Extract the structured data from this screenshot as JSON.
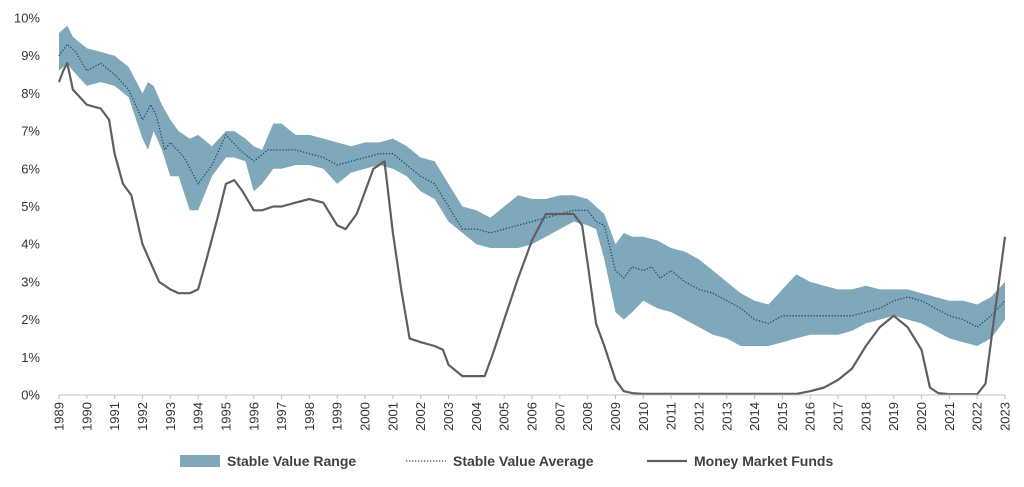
{
  "chart_data": {
    "type": "area",
    "title": "",
    "xlabel": "",
    "ylabel": "",
    "xlim": [
      1989,
      2023
    ],
    "ylim": [
      0,
      10
    ],
    "y_unit": "%",
    "grid": false,
    "legend_position": "bottom",
    "x_ticks": [
      "1989",
      "1990",
      "1991",
      "1992",
      "1993",
      "1994",
      "1995",
      "1996",
      "1997",
      "1998",
      "1999",
      "2000",
      "2001",
      "2002",
      "2003",
      "2004",
      "2005",
      "2006",
      "2007",
      "2008",
      "2009",
      "2010",
      "2011",
      "2012",
      "2013",
      "2014",
      "2015",
      "2016",
      "2017",
      "2018",
      "2019",
      "2020",
      "2021",
      "2022",
      "2023"
    ],
    "y_ticks": [
      "0%",
      "1%",
      "2%",
      "3%",
      "4%",
      "5%",
      "6%",
      "7%",
      "8%",
      "9%",
      "10%"
    ],
    "series": [
      {
        "name": "Stable Value Range",
        "kind": "band",
        "color": "#7fa8bb",
        "x": [
          1989,
          1989.3,
          1989.5,
          1990,
          1990.5,
          1991,
          1991.5,
          1992,
          1992.2,
          1992.4,
          1992.7,
          1993,
          1993.3,
          1993.7,
          1994,
          1994.5,
          1995,
          1995.3,
          1995.7,
          1996,
          1996.3,
          1996.7,
          1997,
          1997.5,
          1998,
          1998.5,
          1999,
          1999.5,
          2000,
          2000.5,
          2001,
          2001.5,
          2002,
          2002.5,
          2003,
          2003.5,
          2004,
          2004.5,
          2005,
          2005.5,
          2006,
          2006.5,
          2007,
          2007.5,
          2008,
          2008.3,
          2008.6,
          2009,
          2009.3,
          2009.6,
          2010,
          2010.5,
          2011,
          2011.5,
          2012,
          2012.5,
          2013,
          2013.5,
          2014,
          2014.5,
          2015,
          2015.5,
          2016,
          2016.5,
          2017,
          2017.5,
          2018,
          2018.5,
          2019,
          2019.5,
          2020,
          2020.5,
          2021,
          2021.5,
          2022,
          2022.5,
          2023
        ],
        "upper": [
          9.6,
          9.8,
          9.5,
          9.2,
          9.1,
          9.0,
          8.7,
          8.0,
          8.3,
          8.2,
          7.7,
          7.3,
          7.0,
          6.8,
          6.9,
          6.6,
          7.0,
          7.0,
          6.8,
          6.6,
          6.5,
          7.2,
          7.2,
          6.9,
          6.9,
          6.8,
          6.7,
          6.6,
          6.7,
          6.7,
          6.8,
          6.6,
          6.3,
          6.2,
          5.6,
          5.0,
          4.9,
          4.7,
          5.0,
          5.3,
          5.2,
          5.2,
          5.3,
          5.3,
          5.2,
          5.0,
          4.8,
          4.0,
          4.3,
          4.2,
          4.2,
          4.1,
          3.9,
          3.8,
          3.6,
          3.3,
          3.0,
          2.7,
          2.5,
          2.4,
          2.8,
          3.2,
          3.0,
          2.9,
          2.8,
          2.8,
          2.9,
          2.8,
          2.8,
          2.8,
          2.7,
          2.6,
          2.5,
          2.5,
          2.4,
          2.6,
          3.0
        ],
        "lower": [
          8.6,
          8.8,
          8.6,
          8.2,
          8.3,
          8.2,
          7.9,
          6.8,
          6.5,
          7.0,
          6.5,
          5.8,
          5.8,
          4.9,
          4.9,
          5.8,
          6.3,
          6.3,
          6.2,
          5.4,
          5.6,
          6.0,
          6.0,
          6.1,
          6.1,
          6.0,
          5.6,
          5.9,
          6.0,
          6.1,
          6.0,
          5.8,
          5.4,
          5.2,
          4.6,
          4.3,
          4.0,
          3.9,
          3.9,
          3.9,
          4.0,
          4.2,
          4.4,
          4.6,
          4.5,
          4.4,
          3.6,
          2.2,
          2.0,
          2.2,
          2.5,
          2.3,
          2.2,
          2.0,
          1.8,
          1.6,
          1.5,
          1.3,
          1.3,
          1.3,
          1.4,
          1.5,
          1.6,
          1.6,
          1.6,
          1.7,
          1.9,
          2.0,
          2.1,
          2.0,
          1.9,
          1.7,
          1.5,
          1.4,
          1.3,
          1.5,
          2.0
        ]
      },
      {
        "name": "Stable Value Average",
        "kind": "dotted-line",
        "color": "#1f4e79",
        "x": [
          1989,
          1989.3,
          1989.6,
          1990,
          1990.5,
          1991,
          1991.5,
          1992,
          1992.3,
          1992.5,
          1992.8,
          1993,
          1993.5,
          1994,
          1994.5,
          1995,
          1995.5,
          1996,
          1996.5,
          1997,
          1997.5,
          1998,
          1998.5,
          1999,
          1999.5,
          2000,
          2000.5,
          2001,
          2001.5,
          2002,
          2002.5,
          2003,
          2003.5,
          2004,
          2004.5,
          2005,
          2005.5,
          2006,
          2006.5,
          2007,
          2007.5,
          2008,
          2008.3,
          2008.6,
          2009,
          2009.3,
          2009.6,
          2010,
          2010.3,
          2010.6,
          2011,
          2011.5,
          2012,
          2012.5,
          2013,
          2013.5,
          2014,
          2014.5,
          2015,
          2015.5,
          2016,
          2016.5,
          2017,
          2017.5,
          2018,
          2018.5,
          2019,
          2019.5,
          2020,
          2020.5,
          2021,
          2021.5,
          2022,
          2022.5,
          2023
        ],
        "y": [
          9.0,
          9.3,
          9.1,
          8.6,
          8.8,
          8.5,
          8.1,
          7.3,
          7.7,
          7.4,
          6.5,
          6.7,
          6.3,
          5.6,
          6.1,
          6.9,
          6.5,
          6.2,
          6.5,
          6.5,
          6.5,
          6.4,
          6.3,
          6.1,
          6.2,
          6.3,
          6.4,
          6.4,
          6.1,
          5.8,
          5.6,
          5.0,
          4.4,
          4.4,
          4.3,
          4.4,
          4.5,
          4.6,
          4.7,
          4.8,
          4.9,
          4.9,
          4.6,
          4.5,
          3.3,
          3.1,
          3.4,
          3.3,
          3.4,
          3.1,
          3.3,
          3.0,
          2.8,
          2.7,
          2.5,
          2.3,
          2.0,
          1.9,
          2.1,
          2.1,
          2.1,
          2.1,
          2.1,
          2.1,
          2.2,
          2.3,
          2.5,
          2.6,
          2.5,
          2.3,
          2.1,
          2.0,
          1.8,
          2.1,
          2.5
        ]
      },
      {
        "name": "Money Market Funds",
        "kind": "line",
        "color": "#5f5f5f",
        "x": [
          1989,
          1989.15,
          1989.3,
          1989.5,
          1990,
          1990.5,
          1990.8,
          1991,
          1991.3,
          1991.6,
          1992,
          1992.3,
          1992.6,
          1993,
          1993.3,
          1993.7,
          1994,
          1994.3,
          1994.7,
          1995,
          1995.3,
          1995.6,
          1996,
          1996.3,
          1996.7,
          1997,
          1997.5,
          1998,
          1998.5,
          1999,
          1999.3,
          1999.7,
          2000,
          2000.3,
          2000.7,
          2001,
          2001.3,
          2001.6,
          2002,
          2002.5,
          2002.8,
          2003,
          2003.5,
          2004,
          2004.3,
          2004.6,
          2005,
          2005.5,
          2006,
          2006.5,
          2007,
          2007.5,
          2007.8,
          2008,
          2008.3,
          2008.6,
          2009,
          2009.3,
          2009.6,
          2010,
          2010.5,
          2011,
          2012,
          2013,
          2014,
          2015,
          2015.5,
          2016,
          2016.5,
          2017,
          2017.5,
          2018,
          2018.5,
          2019,
          2019.5,
          2020,
          2020.3,
          2020.6,
          2021,
          2021.5,
          2021.8,
          2022,
          2022.3,
          2022.6,
          2023
        ],
        "y": [
          8.3,
          8.6,
          8.8,
          8.1,
          7.7,
          7.6,
          7.3,
          6.4,
          5.6,
          5.3,
          4.0,
          3.5,
          3.0,
          2.8,
          2.7,
          2.7,
          2.8,
          3.6,
          4.7,
          5.6,
          5.7,
          5.4,
          4.9,
          4.9,
          5.0,
          5.0,
          5.1,
          5.2,
          5.1,
          4.5,
          4.4,
          4.8,
          5.4,
          6.0,
          6.2,
          4.3,
          2.8,
          1.5,
          1.4,
          1.3,
          1.2,
          0.8,
          0.5,
          0.5,
          0.5,
          1.1,
          2.0,
          3.1,
          4.1,
          4.8,
          4.8,
          4.8,
          4.5,
          3.5,
          1.9,
          1.3,
          0.4,
          0.1,
          0.05,
          0.03,
          0.03,
          0.03,
          0.03,
          0.03,
          0.03,
          0.03,
          0.03,
          0.1,
          0.2,
          0.4,
          0.7,
          1.3,
          1.8,
          2.1,
          1.8,
          1.2,
          0.2,
          0.05,
          0.02,
          0.02,
          0.02,
          0.02,
          0.3,
          2.0,
          4.2
        ]
      }
    ]
  }
}
